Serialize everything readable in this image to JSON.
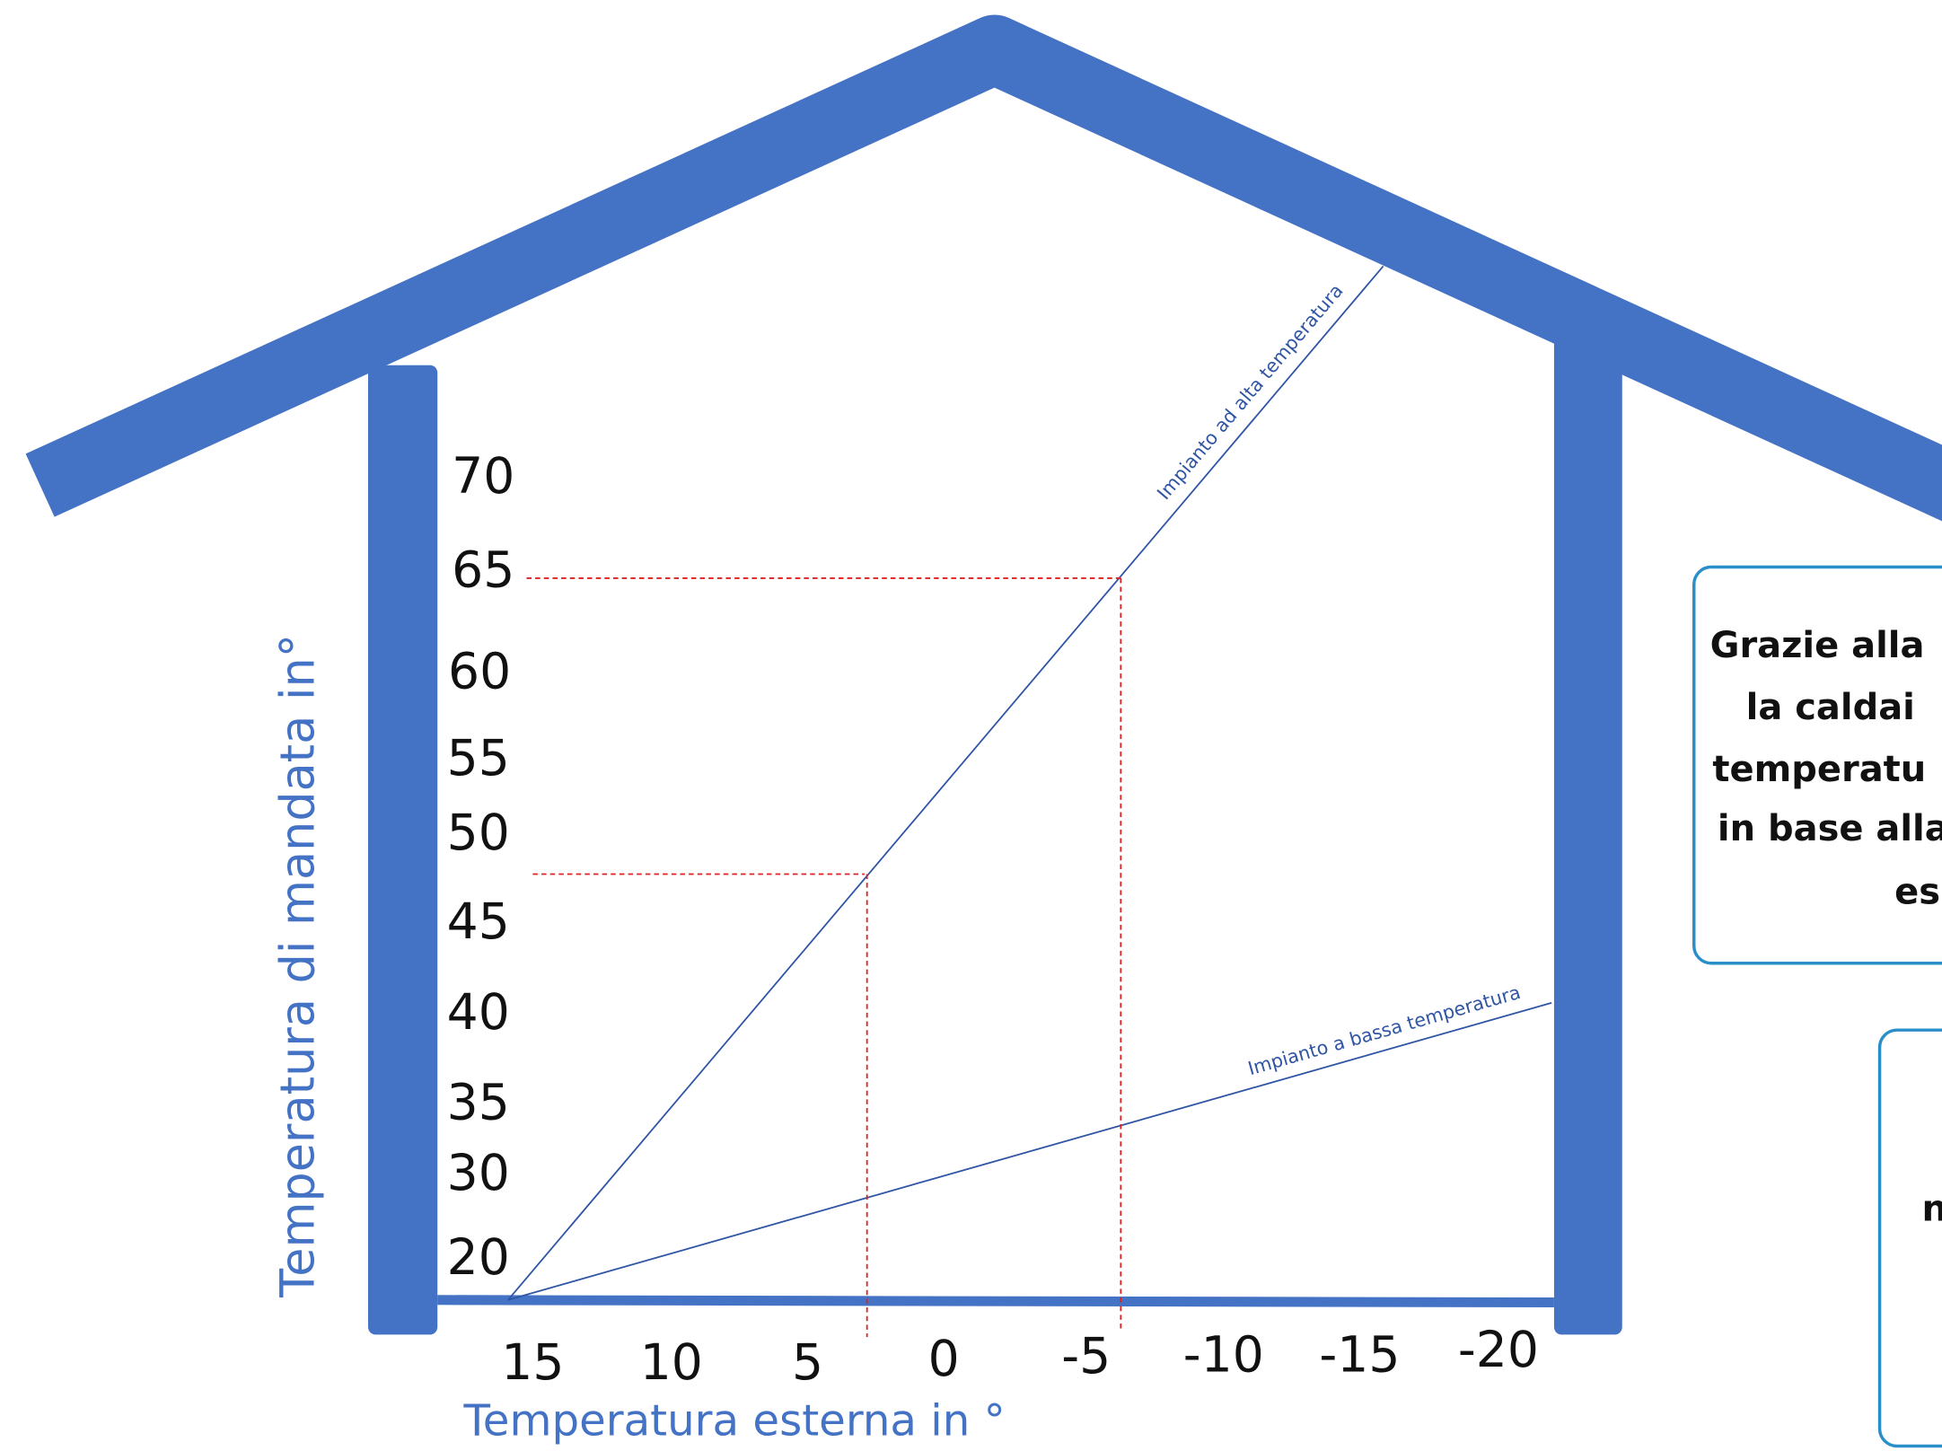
{
  "diagram": {
    "y_axis_label": "Temperatura di mandata in°",
    "x_axis_label": "Temperatura esterna in °",
    "y_ticks": [
      "70",
      "65",
      "60",
      "55",
      "50",
      "45",
      "40",
      "35",
      "30",
      "20"
    ],
    "x_ticks": [
      "15",
      "10",
      "5",
      "0",
      "-5",
      "-10",
      "-15",
      "-20"
    ],
    "curves": [
      "Impianto ad alta temperatura",
      "Impianto a bassa temperatura"
    ],
    "box_1_lines": [
      "Grazie alla",
      "la caldai",
      "temperatu",
      "in base alla",
      "es"
    ],
    "box_2_lines": [
      "n"
    ]
  }
}
